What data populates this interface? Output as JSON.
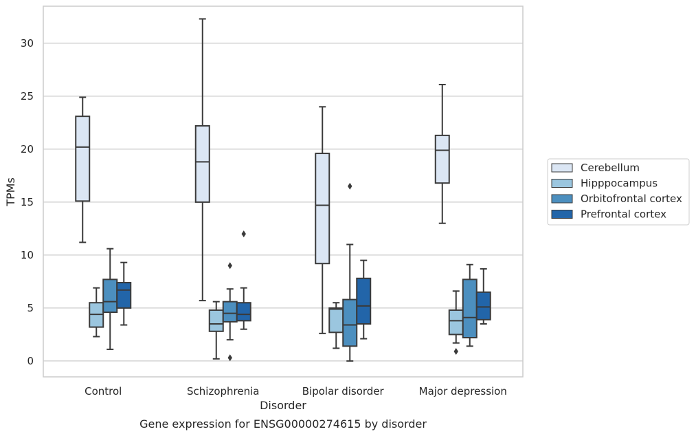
{
  "chart_data": {
    "type": "box",
    "xlabel": "Disorder",
    "ylabel": "TPMs",
    "caption": "Gene expression for ENSG00000274615 by disorder",
    "ylim": [
      -1.5,
      33.5
    ],
    "yticks": [
      0,
      5,
      10,
      15,
      20,
      25,
      30
    ],
    "grid": true,
    "legend_position": "right",
    "categories": [
      "Control",
      "Schizophrenia",
      "Bipolar disorder",
      "Major depression"
    ],
    "series": [
      {
        "name": "Cerebellum",
        "color": "#dbe6f4",
        "boxes": [
          {
            "whislo": 11.2,
            "q1": 15.1,
            "med": 20.2,
            "q3": 23.1,
            "whishi": 24.9,
            "fliers": []
          },
          {
            "whislo": 5.7,
            "q1": 15.0,
            "med": 18.8,
            "q3": 22.2,
            "whishi": 32.3,
            "fliers": []
          },
          {
            "whislo": 2.6,
            "q1": 9.2,
            "med": 14.7,
            "q3": 19.6,
            "whishi": 24.0,
            "fliers": []
          },
          {
            "whislo": 13.0,
            "q1": 16.8,
            "med": 19.9,
            "q3": 21.3,
            "whishi": 26.1,
            "fliers": []
          }
        ]
      },
      {
        "name": "Hipppocampus",
        "color": "#9bc6df",
        "boxes": [
          {
            "whislo": 2.3,
            "q1": 3.2,
            "med": 4.4,
            "q3": 5.5,
            "whishi": 6.9,
            "fliers": []
          },
          {
            "whislo": 0.2,
            "q1": 2.8,
            "med": 3.5,
            "q3": 4.8,
            "whishi": 5.6,
            "fliers": []
          },
          {
            "whislo": 1.2,
            "q1": 2.7,
            "med": 4.9,
            "q3": 5.0,
            "whishi": 5.5,
            "fliers": []
          },
          {
            "whislo": 1.7,
            "q1": 2.5,
            "med": 3.8,
            "q3": 4.8,
            "whishi": 6.6,
            "fliers": [
              0.9
            ]
          }
        ]
      },
      {
        "name": "Orbitofrontal cortex",
        "color": "#4c8fbf",
        "boxes": [
          {
            "whislo": 1.1,
            "q1": 4.6,
            "med": 5.6,
            "q3": 7.7,
            "whishi": 10.6,
            "fliers": []
          },
          {
            "whislo": 2.0,
            "q1": 3.7,
            "med": 4.5,
            "q3": 5.6,
            "whishi": 6.8,
            "fliers": [
              9.0,
              0.3
            ]
          },
          {
            "whislo": 0.0,
            "q1": 1.4,
            "med": 3.4,
            "q3": 5.8,
            "whishi": 11.0,
            "fliers": [
              16.5
            ]
          },
          {
            "whislo": 1.4,
            "q1": 2.2,
            "med": 4.1,
            "q3": 7.7,
            "whishi": 9.1,
            "fliers": []
          }
        ]
      },
      {
        "name": "Prefrontal cortex",
        "color": "#2265a9",
        "boxes": [
          {
            "whislo": 3.4,
            "q1": 5.0,
            "med": 6.7,
            "q3": 7.4,
            "whishi": 9.3,
            "fliers": []
          },
          {
            "whislo": 3.0,
            "q1": 3.8,
            "med": 4.4,
            "q3": 5.5,
            "whishi": 6.9,
            "fliers": [
              12.0
            ]
          },
          {
            "whislo": 2.1,
            "q1": 3.5,
            "med": 5.2,
            "q3": 7.8,
            "whishi": 9.5,
            "fliers": []
          },
          {
            "whislo": 3.5,
            "q1": 3.9,
            "med": 5.1,
            "q3": 6.5,
            "whishi": 8.7,
            "fliers": []
          }
        ]
      }
    ]
  }
}
